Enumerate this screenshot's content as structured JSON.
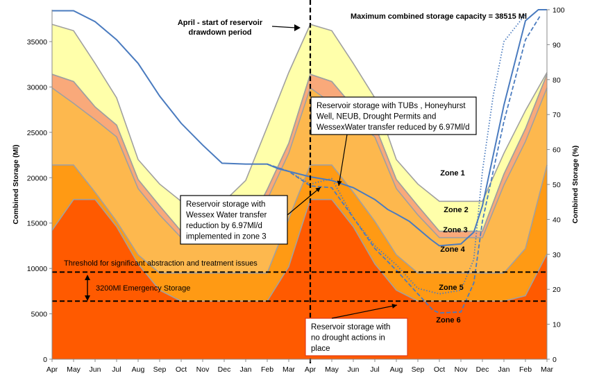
{
  "chart_data": {
    "type": "area",
    "title": "",
    "xlabel": "",
    "ylabel": "Combined Storage (Ml)",
    "ylabel_right": "Combined Storage (%)",
    "ylim": [
      0,
      38515
    ],
    "yticks": [
      0,
      5000,
      10000,
      15000,
      20000,
      25000,
      30000,
      35000
    ],
    "ylim_right": [
      0,
      100
    ],
    "yticks_right": [
      0,
      10,
      20,
      30,
      40,
      50,
      60,
      70,
      80,
      90,
      100
    ],
    "x_tick_labels": [
      "Apr",
      "May",
      "Jun",
      "Jul",
      "Aug",
      "Sep",
      "Oct",
      "Nov",
      "Dec",
      "Jan",
      "Feb",
      "Mar",
      "Apr",
      "May",
      "Jun",
      "Jul",
      "Aug",
      "Sep",
      "Oct",
      "Nov",
      "Dec",
      "Jan",
      "Feb",
      "Mar"
    ],
    "grid": false,
    "colors": {
      "zone6": "#ff5a00",
      "zone5": "#ff9a14",
      "zone4": "#fdb84e",
      "zone3": "#f9a97a",
      "zone2": "#fbbf55",
      "zone1": "#ffffaa",
      "zone_edge": "#a0a0a0",
      "series_line": "#4a7bbf"
    },
    "zone_layers": [
      {
        "name": "Zone 6",
        "values": [
          14200,
          17600,
          17600,
          14600,
          10500,
          7600,
          6400,
          6400,
          6400,
          6400,
          6400,
          10200,
          17600,
          17600,
          14600,
          10500,
          7600,
          6400,
          6400,
          6400,
          6400,
          6400,
          7000,
          11600
        ]
      },
      {
        "name": "Zone 5",
        "values": [
          21400,
          21400,
          18400,
          15200,
          11500,
          9500,
          9500,
          9500,
          9500,
          9500,
          9500,
          15500,
          21400,
          21400,
          18400,
          15200,
          11500,
          9500,
          9500,
          9500,
          9500,
          9500,
          12200,
          21400
        ]
      },
      {
        "name": "Zone 4",
        "values": [
          29900,
          28200,
          26400,
          24500,
          18800,
          15900,
          13400,
          13400,
          13400,
          13400,
          17600,
          22700,
          29900,
          28200,
          26400,
          24500,
          18800,
          15900,
          13400,
          13400,
          13400,
          19200,
          24000,
          29900
        ]
      },
      {
        "name": "Zone 3",
        "values": [
          31400,
          30600,
          27800,
          25800,
          19800,
          16900,
          14100,
          14100,
          14100,
          14100,
          18700,
          23800,
          31400,
          30600,
          27800,
          25800,
          19800,
          16900,
          14100,
          14100,
          14100,
          20400,
          25400,
          31400
        ]
      },
      {
        "name": "Zone 2",
        "values": [
          31400,
          30600,
          27800,
          25800,
          19800,
          16900,
          14100,
          14100,
          14100,
          14100,
          18700,
          23800,
          31400,
          30600,
          27800,
          25800,
          19800,
          16900,
          14100,
          14100,
          14100,
          20400,
          25400,
          31400
        ]
      },
      {
        "name": "Zone 1",
        "values": [
          36900,
          36200,
          32600,
          28800,
          22000,
          19300,
          17400,
          17400,
          17400,
          19700,
          25600,
          31600,
          36900,
          36200,
          32600,
          28800,
          22000,
          19300,
          17400,
          17400,
          17400,
          22700,
          27400,
          31600
        ]
      }
    ],
    "series": [
      {
        "name": "Reservoir storage with TUBs , Honeyhurst Well, NEUB, Drought Permits and WessexWater transfer reduced by 6.97Ml/d",
        "style": "solid",
        "x": [
          0,
          1,
          2,
          3,
          4,
          5,
          6,
          7,
          7.9,
          9,
          10,
          10.5,
          11,
          12,
          13,
          14,
          15,
          15.6,
          16,
          16.6,
          17,
          17.6,
          18,
          19,
          19.6,
          20,
          21,
          22,
          22.6,
          23
        ],
        "values": [
          38400,
          38400,
          37200,
          35200,
          32600,
          29000,
          26000,
          23600,
          21600,
          21500,
          21500,
          21000,
          20700,
          20100,
          19700,
          18900,
          17600,
          16500,
          16000,
          15200,
          14400,
          13200,
          12500,
          12700,
          14000,
          16900,
          28000,
          37300,
          38515,
          38515
        ]
      },
      {
        "name": "Reservoir storage with Wessex Water transfer reduction by 6.97Ml/d implemented in zone 3",
        "style": "dotted",
        "x": [
          10,
          11,
          12,
          13,
          14,
          15,
          16,
          17,
          18,
          19,
          19.6,
          20,
          20.5,
          21,
          22
        ],
        "values": [
          21500,
          20700,
          19300,
          19900,
          15600,
          12500,
          10400,
          7800,
          7200,
          7600,
          11000,
          20700,
          29000,
          35000,
          38000
        ]
      },
      {
        "name": "Reservoir storage with no drought actions in place",
        "style": "dashed",
        "x": [
          10,
          11,
          12,
          13,
          14,
          15,
          16,
          17,
          17.7,
          18,
          19,
          19.6,
          20,
          21,
          22,
          22.7
        ],
        "values": [
          21500,
          20700,
          19100,
          18900,
          15600,
          12200,
          9800,
          7200,
          5400,
          5100,
          5200,
          8400,
          15200,
          26200,
          35200,
          37900
        ]
      }
    ],
    "thresholds": [
      {
        "value": 9600,
        "label": "Threshold for significant abstraction and treatment issues"
      },
      {
        "value": 6400,
        "label": ""
      }
    ],
    "emergency_storage_label": "3200Ml Emergency Storage",
    "vline": {
      "x": 12,
      "label_lines": [
        "April - start of reservoir",
        "drawdown period"
      ]
    },
    "capacity_label": "Maximum combined storage capacity = 38515 Ml",
    "zone_labels": [
      "Zone 1",
      "Zone 2",
      "Zone 3",
      "Zone 4",
      "Zone 5",
      "Zone 6"
    ],
    "callouts": [
      {
        "lines": [
          "Reservoir storage with TUBs , Honeyhurst",
          "Well, NEUB, Drought Permits and",
          "WessexWater transfer reduced by 6.97Ml/d"
        ],
        "color": "#000000"
      },
      {
        "lines": [
          "Reservoir storage with",
          "Wessex Water transfer",
          "reduction by 6.97Ml/d",
          "implemented in zone 3"
        ],
        "color": "#000000"
      },
      {
        "lines": [
          "Reservoir storage with",
          "no drought actions in",
          "place"
        ],
        "color": "#e03c1a"
      }
    ]
  }
}
